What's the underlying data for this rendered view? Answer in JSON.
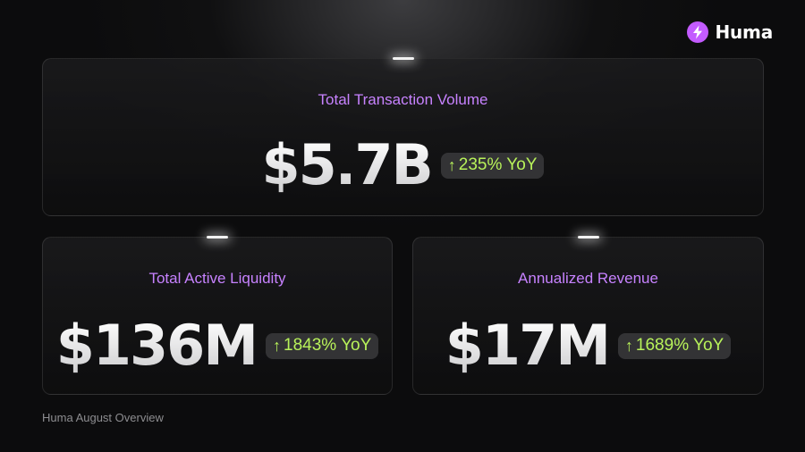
{
  "brand": {
    "name": "Huma",
    "icon": "lightning-bolt-icon",
    "accent_color": "#c35bff"
  },
  "cards": {
    "transaction_volume": {
      "label": "Total Transaction Volume",
      "value": "$5.7B",
      "change": "235% YoY",
      "change_icon": "arrow-up-icon"
    },
    "active_liquidity": {
      "label": "Total Active Liquidity",
      "value": "$136M",
      "change": "1843% YoY",
      "change_icon": "arrow-up-icon"
    },
    "annualized_revenue": {
      "label": "Annualized Revenue",
      "value": "$17M",
      "change": "1689% YoY",
      "change_icon": "arrow-up-icon"
    }
  },
  "colors": {
    "label": "#c782ff",
    "change": "#b8f25a",
    "background": "#0c0c0d"
  },
  "footer": {
    "text": "Huma August Overview"
  }
}
